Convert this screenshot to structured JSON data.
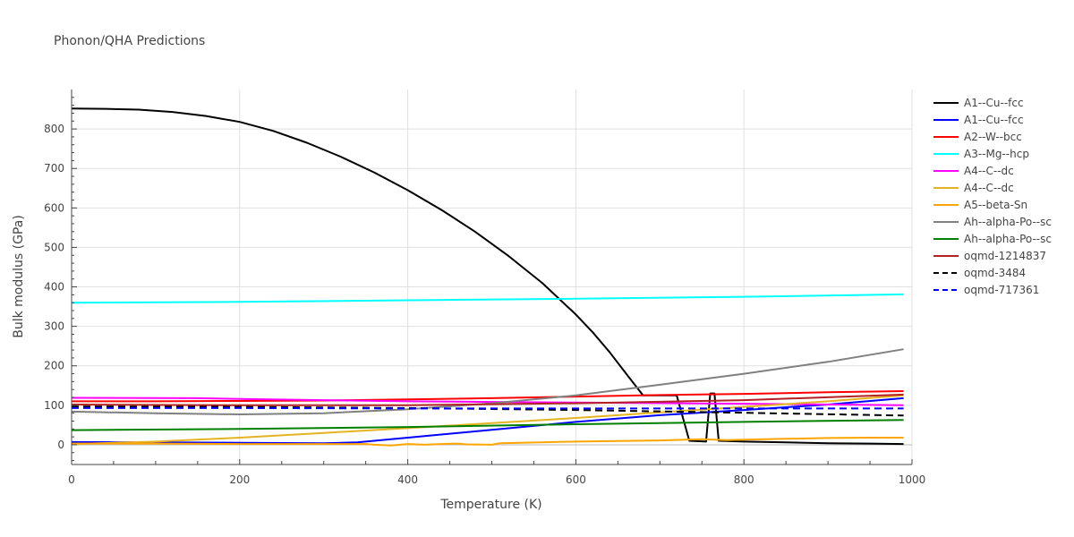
{
  "chart_data": {
    "type": "line",
    "title": "Phonon/QHA Predictions",
    "xlabel": "Temperature (K)",
    "ylabel": "Bulk modulus (GPa)",
    "xlim": [
      0,
      1000
    ],
    "ylim": [
      -50,
      900
    ],
    "xticks": [
      0,
      200,
      400,
      600,
      800,
      1000
    ],
    "yticks": [
      0,
      100,
      200,
      300,
      400,
      500,
      600,
      700,
      800
    ],
    "grid": true,
    "legend_position": "right",
    "series": [
      {
        "name": "A1--Cu--fcc",
        "color": "#000000",
        "dash": "solid",
        "x": [
          0,
          40,
          80,
          120,
          160,
          200,
          240,
          280,
          320,
          360,
          400,
          440,
          480,
          520,
          560,
          600,
          620,
          640,
          660,
          680,
          690,
          720,
          735,
          755,
          760,
          765,
          770,
          800,
          850,
          900,
          950,
          990
        ],
        "y": [
          852,
          851,
          849,
          843,
          833,
          818,
          795,
          765,
          730,
          690,
          645,
          595,
          540,
          478,
          410,
          330,
          285,
          235,
          180,
          125,
          125,
          125,
          10,
          8,
          130,
          130,
          10,
          8,
          6,
          4,
          3,
          2
        ]
      },
      {
        "name": "A1--Cu--fcc",
        "color": "#0000ff",
        "dash": "solid",
        "x": [
          0,
          100,
          200,
          300,
          340,
          400,
          500,
          600,
          700,
          800,
          900,
          990
        ],
        "y": [
          7,
          6,
          5,
          4,
          6,
          18,
          38,
          58,
          75,
          88,
          102,
          118
        ]
      },
      {
        "name": "A2--W--bcc",
        "color": "#ff0000",
        "dash": "solid",
        "x": [
          0,
          100,
          200,
          300,
          400,
          500,
          600,
          700,
          800,
          900,
          990
        ],
        "y": [
          110,
          110,
          111,
          112,
          115,
          118,
          122,
          126,
          129,
          133,
          136
        ]
      },
      {
        "name": "A3--Mg--hcp",
        "color": "#00ffff",
        "dash": "solid",
        "x": [
          0,
          200,
          400,
          600,
          800,
          990
        ],
        "y": [
          360,
          362,
          366,
          370,
          375,
          381
        ]
      },
      {
        "name": "A4--C--dc",
        "color": "#ff00ff",
        "dash": "solid",
        "x": [
          0,
          150,
          200,
          300,
          400,
          600,
          800,
          990
        ],
        "y": [
          119,
          118,
          116,
          113,
          110,
          107,
          104,
          100
        ]
      },
      {
        "name": "A4--C--dc",
        "color": "#e6b422",
        "dash": "solid",
        "x": [
          0,
          100,
          200,
          300,
          400,
          500,
          600,
          700,
          800,
          900,
          990
        ],
        "y": [
          2,
          8,
          18,
          30,
          42,
          55,
          68,
          82,
          96,
          110,
          125
        ]
      },
      {
        "name": "A5--beta-Sn",
        "color": "#ffa500",
        "dash": "solid",
        "x": [
          0,
          100,
          200,
          300,
          350,
          360,
          380,
          400,
          420,
          440,
          460,
          470,
          500,
          510,
          600,
          700,
          750,
          780,
          800,
          850,
          900,
          950,
          990
        ],
        "y": [
          3,
          3,
          2,
          2,
          2,
          0,
          -2,
          2,
          0,
          2,
          3,
          1,
          0,
          4,
          8,
          11,
          14,
          12,
          13,
          15,
          17,
          18,
          18
        ]
      },
      {
        "name": "Ah--alpha-Po--sc",
        "color": "#808080",
        "dash": "solid",
        "x": [
          0,
          100,
          200,
          300,
          400,
          500,
          600,
          700,
          800,
          900,
          990
        ],
        "y": [
          84,
          80,
          77,
          80,
          90,
          105,
          125,
          152,
          180,
          210,
          242
        ]
      },
      {
        "name": "Ah--alpha-Po--sc",
        "color": "#008000",
        "dash": "solid",
        "x": [
          0,
          200,
          400,
          600,
          800,
          990
        ],
        "y": [
          37,
          40,
          45,
          52,
          58,
          63
        ]
      },
      {
        "name": "oqmd-1214837",
        "color": "#b22222",
        "dash": "solid",
        "x": [
          0,
          200,
          400,
          600,
          800,
          990
        ],
        "y": [
          102,
          100,
          100,
          105,
          113,
          127
        ]
      },
      {
        "name": "oqmd-3484",
        "color": "#000000",
        "dash": "dash",
        "x": [
          0,
          200,
          400,
          600,
          800,
          990
        ],
        "y": [
          97,
          96,
          93,
          88,
          81,
          74
        ]
      },
      {
        "name": "oqmd-717361",
        "color": "#0000ff",
        "dash": "dash",
        "x": [
          0,
          200,
          400,
          600,
          800,
          990
        ],
        "y": [
          93,
          93,
          92,
          92,
          92,
          92
        ]
      }
    ]
  }
}
